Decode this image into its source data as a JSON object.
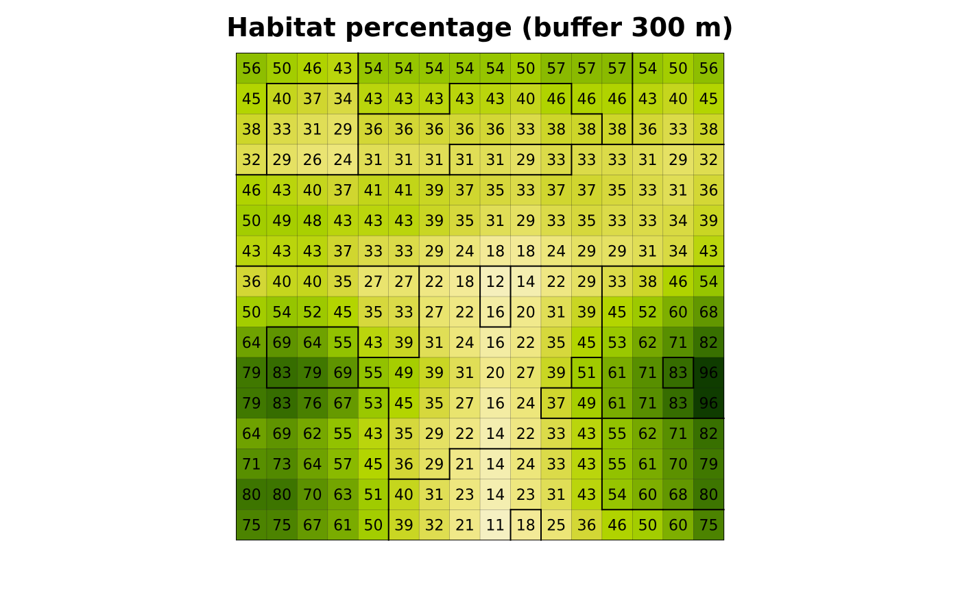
{
  "chart_data": {
    "type": "heatmap",
    "title": "Habitat percentage (buffer 300 m)",
    "rows": 16,
    "cols": 16,
    "values": [
      [
        56,
        50,
        46,
        43,
        54,
        54,
        54,
        54,
        54,
        50,
        57,
        57,
        57,
        54,
        50,
        56
      ],
      [
        45,
        40,
        37,
        34,
        43,
        43,
        43,
        43,
        43,
        40,
        46,
        46,
        46,
        43,
        40,
        45
      ],
      [
        38,
        33,
        31,
        29,
        36,
        36,
        36,
        36,
        36,
        33,
        38,
        38,
        38,
        36,
        33,
        38
      ],
      [
        32,
        29,
        26,
        24,
        31,
        31,
        31,
        31,
        31,
        29,
        33,
        33,
        33,
        31,
        29,
        32
      ],
      [
        46,
        43,
        40,
        37,
        41,
        41,
        39,
        37,
        35,
        33,
        37,
        37,
        35,
        33,
        31,
        36
      ],
      [
        50,
        49,
        48,
        43,
        43,
        43,
        39,
        35,
        31,
        29,
        33,
        35,
        33,
        33,
        34,
        39
      ],
      [
        43,
        43,
        43,
        37,
        33,
        33,
        29,
        24,
        18,
        18,
        24,
        29,
        29,
        31,
        34,
        43
      ],
      [
        36,
        40,
        40,
        35,
        27,
        27,
        22,
        18,
        12,
        14,
        22,
        29,
        33,
        38,
        46,
        54
      ],
      [
        50,
        54,
        52,
        45,
        35,
        33,
        27,
        22,
        16,
        20,
        31,
        39,
        45,
        52,
        60,
        68
      ],
      [
        64,
        69,
        64,
        55,
        43,
        39,
        31,
        24,
        16,
        22,
        35,
        45,
        53,
        62,
        71,
        82
      ],
      [
        79,
        83,
        79,
        69,
        55,
        49,
        39,
        31,
        20,
        27,
        39,
        51,
        61,
        71,
        83,
        96
      ],
      [
        79,
        83,
        76,
        67,
        53,
        45,
        35,
        27,
        16,
        24,
        37,
        49,
        61,
        71,
        83,
        96
      ],
      [
        64,
        69,
        62,
        55,
        43,
        35,
        29,
        22,
        14,
        22,
        33,
        43,
        55,
        62,
        71,
        82
      ],
      [
        71,
        73,
        64,
        57,
        45,
        36,
        29,
        21,
        14,
        24,
        33,
        43,
        55,
        61,
        70,
        79
      ],
      [
        80,
        80,
        70,
        63,
        51,
        40,
        31,
        23,
        14,
        23,
        31,
        43,
        54,
        60,
        68,
        80
      ],
      [
        75,
        75,
        67,
        61,
        50,
        39,
        32,
        21,
        11,
        18,
        25,
        36,
        46,
        50,
        60,
        75
      ]
    ],
    "zones": [
      [
        1,
        1,
        1,
        1,
        2,
        2,
        2,
        2,
        2,
        2,
        2,
        2,
        2,
        3,
        3,
        3
      ],
      [
        1,
        4,
        4,
        4,
        2,
        2,
        2,
        5,
        5,
        5,
        5,
        2,
        2,
        3,
        3,
        3
      ],
      [
        1,
        4,
        4,
        4,
        5,
        5,
        5,
        5,
        5,
        5,
        5,
        5,
        2,
        3,
        3,
        3
      ],
      [
        1,
        4,
        4,
        4,
        5,
        5,
        5,
        6,
        6,
        6,
        6,
        7,
        7,
        7,
        7,
        7
      ],
      [
        7,
        7,
        7,
        7,
        7,
        7,
        7,
        7,
        7,
        7,
        7,
        7,
        7,
        7,
        7,
        7
      ],
      [
        7,
        7,
        7,
        7,
        7,
        7,
        7,
        7,
        7,
        7,
        7,
        7,
        7,
        7,
        7,
        7
      ],
      [
        7,
        7,
        7,
        7,
        7,
        7,
        7,
        7,
        7,
        7,
        7,
        7,
        7,
        7,
        7,
        7
      ],
      [
        8,
        8,
        8,
        8,
        8,
        8,
        9,
        9,
        10,
        9,
        9,
        9,
        11,
        11,
        11,
        11
      ],
      [
        8,
        8,
        8,
        8,
        8,
        8,
        9,
        9,
        10,
        9,
        9,
        9,
        11,
        11,
        11,
        11
      ],
      [
        8,
        12,
        12,
        12,
        8,
        8,
        9,
        9,
        9,
        9,
        9,
        9,
        11,
        11,
        11,
        11
      ],
      [
        8,
        12,
        12,
        12,
        9,
        9,
        9,
        9,
        9,
        9,
        9,
        13,
        11,
        11,
        14,
        11
      ],
      [
        8,
        8,
        8,
        8,
        8,
        9,
        9,
        9,
        9,
        9,
        15,
        15,
        11,
        11,
        11,
        11
      ],
      [
        8,
        8,
        8,
        8,
        8,
        9,
        9,
        9,
        9,
        9,
        9,
        9,
        16,
        16,
        16,
        16
      ],
      [
        8,
        8,
        8,
        8,
        8,
        9,
        9,
        17,
        17,
        17,
        17,
        17,
        16,
        16,
        16,
        16
      ],
      [
        8,
        8,
        8,
        8,
        8,
        17,
        17,
        17,
        17,
        17,
        17,
        17,
        16,
        16,
        16,
        16
      ],
      [
        8,
        8,
        8,
        8,
        8,
        17,
        17,
        17,
        17,
        18,
        17,
        17,
        17,
        17,
        17,
        17
      ]
    ],
    "colors": {
      "stops": [
        [
          0,
          "#f5f0c2"
        ],
        [
          0.1,
          "#f2e98e"
        ],
        [
          0.2,
          "#e8e36a"
        ],
        [
          0.3,
          "#d2d632"
        ],
        [
          0.4,
          "#b3d500"
        ],
        [
          0.5,
          "#98c700"
        ],
        [
          0.6,
          "#76a800"
        ],
        [
          0.7,
          "#5a9000"
        ],
        [
          0.8,
          "#407800"
        ],
        [
          0.9,
          "#2a6000"
        ],
        [
          1.0,
          "#0f3c00"
        ]
      ],
      "vmin": 11,
      "vmax": 96
    },
    "legend": "none",
    "grid": true
  }
}
